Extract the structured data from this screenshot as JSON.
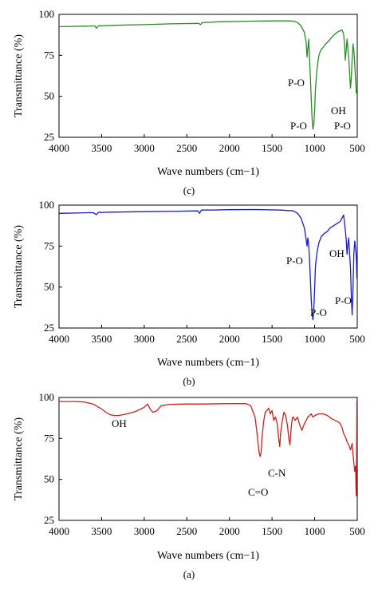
{
  "chart_data": [
    {
      "panel": "(c)",
      "type": "line",
      "xlabel": "Wave numbers (cm−1)",
      "ylabel": "Transmittance (%)",
      "xlim": [
        4000,
        500
      ],
      "ylim": [
        25,
        100
      ],
      "xticks": [
        4000,
        3500,
        3000,
        2500,
        2000,
        1500,
        1000,
        500
      ],
      "yticks": [
        25,
        50,
        75,
        100
      ],
      "color": "#2a8a2a",
      "series": [
        {
          "x": [
            4000,
            3700,
            3580,
            3560,
            3540,
            3400,
            3000,
            2700,
            2360,
            2340,
            2320,
            2100,
            1800,
            1500,
            1300,
            1240,
            1200,
            1160,
            1120,
            1100,
            1090,
            1080,
            1070,
            1060,
            1050,
            1040,
            1030,
            1020,
            1010,
            1000,
            990,
            970,
            950,
            930,
            900,
            870,
            850,
            830,
            800,
            780,
            760,
            740,
            720,
            700,
            680,
            660,
            650,
            640,
            630,
            620,
            610,
            600,
            590,
            580,
            570,
            560,
            550,
            540,
            530,
            520,
            510,
            505
          ],
          "y": [
            92.5,
            92.8,
            93,
            91.5,
            93,
            93.3,
            93.7,
            94.2,
            94.5,
            93.7,
            95,
            95.5,
            95.8,
            96,
            96,
            95.8,
            95,
            93,
            89,
            83,
            74,
            79,
            85,
            72,
            62,
            48,
            36,
            30,
            33,
            42,
            55,
            68,
            75,
            78,
            80,
            82,
            83,
            84,
            86,
            87,
            88,
            89,
            89.5,
            90,
            90.5,
            88,
            82,
            72,
            78,
            85,
            80,
            74,
            64,
            55,
            61,
            73,
            82,
            78,
            70,
            60,
            52,
            55
          ]
        }
      ],
      "annotations": [
        "P-O",
        "P-O",
        "OH",
        "P-O"
      ]
    },
    {
      "panel": "(b)",
      "type": "line",
      "xlabel": "Wave numbers (cm−1)",
      "ylabel": "Transmittance (%)",
      "xlim": [
        4000,
        500
      ],
      "ylim": [
        25,
        100
      ],
      "xticks": [
        4000,
        3500,
        3000,
        2500,
        2000,
        1500,
        1000,
        500
      ],
      "yticks": [
        25,
        50,
        75,
        100
      ],
      "color": "#1a1ad0",
      "series": [
        {
          "x": [
            4000,
            3800,
            3600,
            3560,
            3540,
            3400,
            3000,
            2600,
            2370,
            2350,
            2330,
            2200,
            2000,
            1700,
            1400,
            1250,
            1200,
            1160,
            1120,
            1100,
            1090,
            1080,
            1070,
            1060,
            1050,
            1040,
            1030,
            1020,
            1010,
            1000,
            990,
            970,
            950,
            920,
            880,
            850,
            820,
            790,
            760,
            730,
            700,
            680,
            660,
            640,
            630,
            620,
            610,
            600,
            590,
            580,
            570,
            560,
            550,
            540,
            530,
            520,
            510,
            505
          ],
          "y": [
            95,
            95.2,
            95.4,
            94.2,
            95.5,
            95.7,
            96,
            96.3,
            96.5,
            95,
            97,
            97,
            97.2,
            97.3,
            97,
            96.5,
            95,
            92,
            86,
            79,
            75,
            80,
            76,
            66,
            55,
            42,
            34,
            30,
            36,
            50,
            63,
            72,
            77,
            81,
            83,
            84,
            86,
            87,
            88,
            89,
            90,
            92,
            94,
            85,
            79,
            70,
            76,
            80,
            70,
            62,
            45,
            33,
            50,
            70,
            78,
            74,
            68,
            55
          ]
        }
      ],
      "annotations": [
        "P-O",
        "OH",
        "P-O",
        "P-O"
      ]
    },
    {
      "panel": "(a)",
      "type": "line",
      "xlabel": "Wave numbers (cm−1)",
      "ylabel": "Transmittance (%)",
      "xlim": [
        4000,
        500
      ],
      "ylim": [
        25,
        100
      ],
      "xticks": [
        4000,
        3500,
        3000,
        2500,
        2000,
        1500,
        1000,
        500
      ],
      "yticks": [
        25,
        50,
        75,
        100
      ],
      "color": "#cc1f1f",
      "series": [
        {
          "x": [
            4000,
            3800,
            3700,
            3600,
            3500,
            3450,
            3400,
            3350,
            3300,
            3200,
            3100,
            3000,
            2960,
            2930,
            2900,
            2870,
            2850,
            2800,
            2700,
            2500,
            2300,
            2100,
            1900,
            1800,
            1750,
            1700,
            1680,
            1660,
            1650,
            1640,
            1630,
            1620,
            1600,
            1580,
            1560,
            1540,
            1520,
            1500,
            1480,
            1460,
            1440,
            1420,
            1410,
            1400,
            1390,
            1380,
            1360,
            1340,
            1320,
            1300,
            1290,
            1280,
            1270,
            1260,
            1250,
            1230,
            1200,
            1180,
            1150,
            1120,
            1100,
            1080,
            1060,
            1040,
            1020,
            1000,
            950,
            900,
            850,
            800,
            760,
            720,
            700,
            680,
            660,
            640,
            620,
            600,
            580,
            560,
            550,
            540,
            530,
            520,
            515,
            510,
            505
          ],
          "y": [
            97.5,
            97.5,
            97.2,
            96,
            93,
            91,
            89.5,
            89,
            89,
            90,
            91.5,
            94,
            96,
            93,
            91,
            91.5,
            92,
            95,
            95.8,
            96,
            96,
            96.2,
            96.3,
            96.2,
            95,
            88,
            80,
            70,
            66,
            64,
            66,
            74,
            85,
            91,
            92,
            93.5,
            90,
            92,
            86,
            88,
            84,
            74,
            70,
            78,
            82,
            86,
            91,
            89,
            83,
            74,
            71,
            79,
            84,
            88,
            88,
            86,
            88,
            84,
            80,
            84,
            86,
            88,
            89,
            90,
            88,
            89,
            90,
            90,
            89,
            87,
            86,
            85,
            84,
            82,
            78,
            76,
            73,
            71,
            68,
            72,
            65,
            60,
            55,
            58,
            45,
            40,
            98
          ]
        }
      ],
      "annotations": [
        "OH",
        "C=O",
        "C-N"
      ]
    }
  ],
  "captions": [
    "(c)",
    "(b)",
    "(a)"
  ]
}
